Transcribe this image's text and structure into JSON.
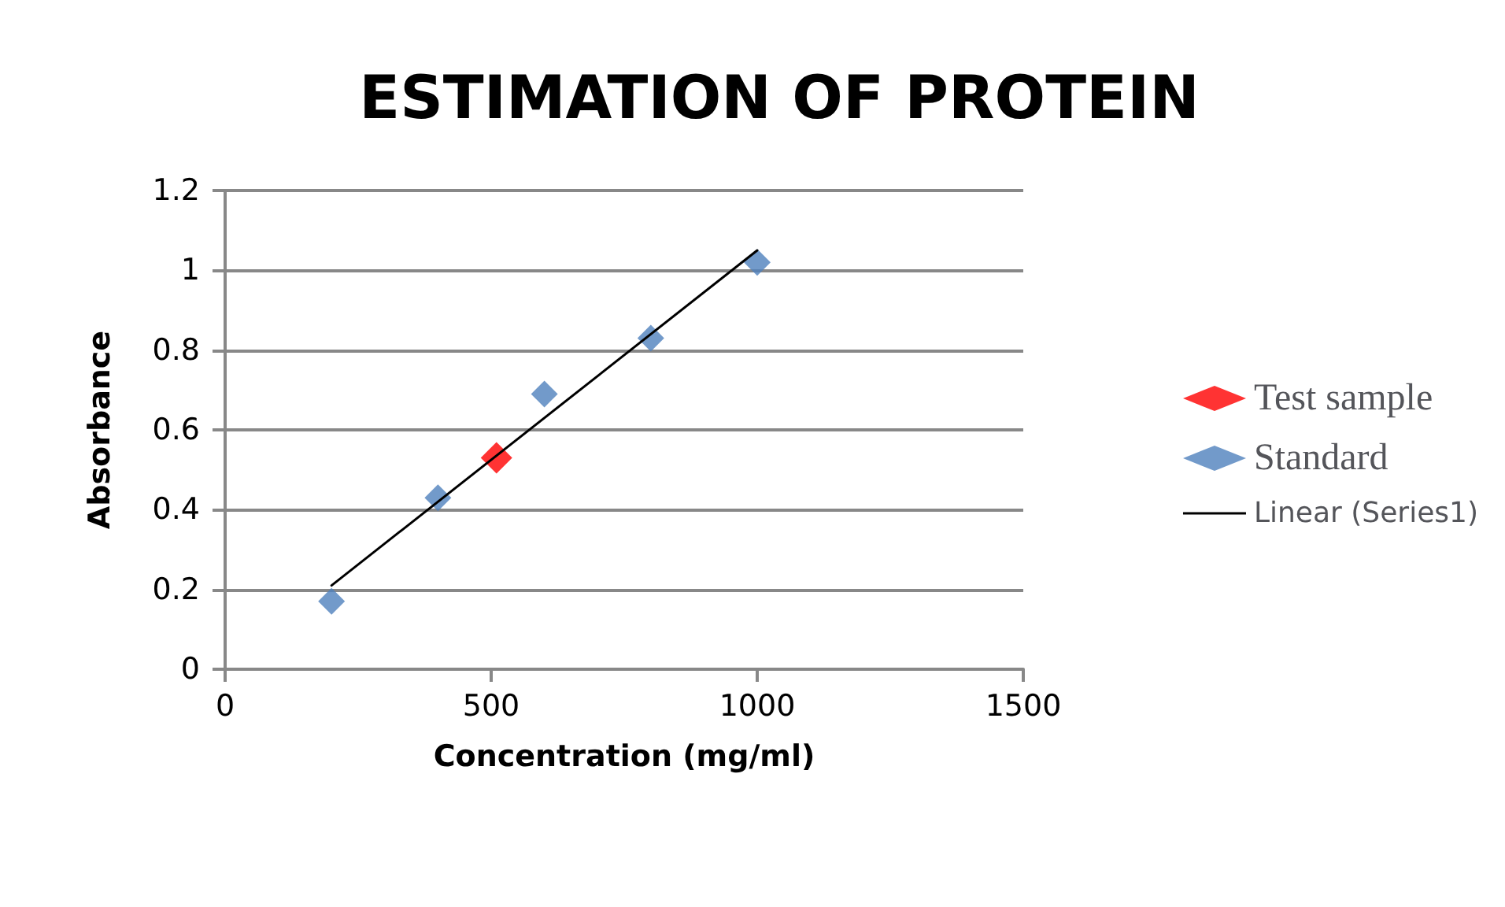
{
  "chart_data": {
    "type": "scatter",
    "title": "ESTIMATION OF PROTEIN",
    "xlabel": "Concentration (mg/ml)",
    "ylabel": "Absorbance",
    "xlim": [
      0,
      1500
    ],
    "xticks": [
      0,
      500,
      1000,
      1500
    ],
    "ylim": [
      0,
      1.2
    ],
    "yticks": [
      0,
      0.2,
      0.4,
      0.6,
      0.8,
      1,
      1.2
    ],
    "grid": "y",
    "legend": "right",
    "marker": "diamond",
    "series": [
      {
        "name": "Test sample",
        "color": "#ff0000",
        "x": [
          510
        ],
        "values": [
          0.53
        ]
      },
      {
        "name": "Standard",
        "color": "#4f81bd",
        "x": [
          200,
          400,
          600,
          800,
          1000
        ],
        "values": [
          0.17,
          0.43,
          0.69,
          0.83,
          1.02
        ]
      },
      {
        "name": "Linear (Series1)",
        "type": "line",
        "color": "#000000",
        "marker": "none",
        "line_style": "solid",
        "x": [
          200,
          1000
        ],
        "values": [
          0.21,
          1.05
        ]
      }
    ]
  }
}
